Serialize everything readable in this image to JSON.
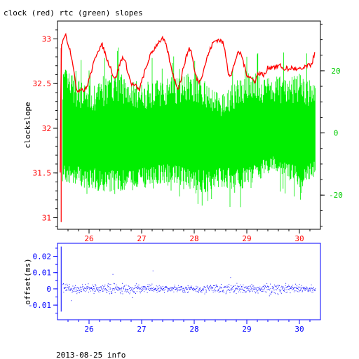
{
  "title": "clock (red) rtc (green) slopes",
  "footer": "2013-08-25 info",
  "colors": {
    "clock": "#ff0000",
    "rtc": "#00ee00",
    "offset": "#0000ff",
    "frame": "#000000",
    "rtc_axis": "#00cc00"
  },
  "chart_data": [
    {
      "type": "line",
      "title": "clock (red) rtc (green) slopes",
      "xlabel": "",
      "ylabel": "clockslope",
      "xlim": [
        25.4,
        30.4
      ],
      "ylim": [
        30.87,
        33.2
      ],
      "x_ticks": [
        26,
        27,
        28,
        29,
        30
      ],
      "x_tick_labels": [
        "26",
        "27",
        "28",
        "29",
        "30"
      ],
      "y_ticks": [
        31,
        31.5,
        32,
        32.5,
        33
      ],
      "y_tick_labels": [
        "31",
        "31.5",
        "32",
        "32.5",
        "33"
      ],
      "y2lim": [
        -31,
        36
      ],
      "y2_ticks": [
        -20,
        0,
        20
      ],
      "y2_tick_labels": [
        "-20",
        "0",
        "20"
      ],
      "grid": false,
      "series": [
        {
          "name": "clock",
          "color": "#ff0000",
          "axis": "left",
          "x": [
            25.45,
            25.47,
            25.5,
            25.55,
            25.6,
            25.65,
            25.7,
            25.75,
            25.8,
            25.85,
            25.9,
            25.95,
            26.0,
            26.05,
            26.1,
            26.15,
            26.2,
            26.25,
            26.3,
            26.35,
            26.4,
            26.45,
            26.5,
            26.55,
            26.6,
            26.65,
            26.7,
            26.75,
            26.8,
            26.85,
            26.9,
            26.95,
            27.0,
            27.05,
            27.1,
            27.15,
            27.2,
            27.25,
            27.3,
            27.35,
            27.4,
            27.45,
            27.5,
            27.55,
            27.6,
            27.65,
            27.7,
            27.75,
            27.8,
            27.85,
            27.9,
            27.95,
            28.0,
            28.05,
            28.1,
            28.15,
            28.2,
            28.25,
            28.3,
            28.35,
            28.4,
            28.45,
            28.5,
            28.55,
            28.6,
            28.65,
            28.7,
            28.75,
            28.8,
            28.85,
            28.9,
            28.95,
            29.0,
            29.05,
            29.1,
            29.15,
            29.2,
            29.25,
            29.3,
            29.35,
            29.4,
            29.45,
            29.5,
            29.55,
            29.6,
            29.65,
            29.7,
            29.75,
            29.8,
            29.85,
            29.9,
            29.95,
            30.0,
            30.05,
            30.1,
            30.15,
            30.2,
            30.25,
            30.3
          ],
          "values": [
            31.5,
            32.9,
            33.0,
            33.05,
            32.95,
            32.85,
            32.7,
            32.45,
            32.42,
            32.45,
            32.42,
            32.45,
            32.55,
            32.65,
            32.75,
            32.85,
            32.9,
            32.93,
            32.85,
            32.75,
            32.7,
            32.6,
            32.55,
            32.65,
            32.75,
            32.8,
            32.72,
            32.6,
            32.5,
            32.48,
            32.47,
            32.42,
            32.52,
            32.62,
            32.7,
            32.8,
            32.85,
            32.9,
            32.95,
            32.98,
            33.0,
            32.95,
            32.85,
            32.7,
            32.6,
            32.5,
            32.45,
            32.55,
            32.7,
            32.8,
            32.9,
            32.85,
            32.65,
            32.55,
            32.52,
            32.6,
            32.7,
            32.8,
            32.88,
            32.95,
            32.98,
            32.99,
            32.98,
            32.95,
            32.82,
            32.62,
            32.58,
            32.7,
            32.8,
            32.85,
            32.82,
            32.7,
            32.6,
            32.58,
            32.55,
            32.52,
            32.6,
            32.62,
            32.6,
            32.6,
            32.68,
            32.68,
            32.7,
            32.68,
            32.7,
            32.7,
            32.65,
            32.68,
            32.65,
            32.68,
            32.67,
            32.65,
            32.66,
            32.66,
            32.68,
            32.7,
            32.7,
            32.75,
            32.88
          ]
        },
        {
          "name": "rtc",
          "color": "#00ee00",
          "axis": "right",
          "x": [
            25.5,
            26.0,
            26.5,
            27.0,
            27.5,
            28.0,
            28.5,
            29.0,
            29.5,
            30.0,
            30.3
          ],
          "upper": [
            22,
            14,
            20,
            16,
            18,
            20,
            12,
            20,
            18,
            20,
            16
          ],
          "lower": [
            -16,
            -18,
            -20,
            -18,
            -16,
            -20,
            -18,
            -18,
            -12,
            -18,
            -14
          ],
          "center": [
            -3,
            -3,
            -2,
            -3,
            -2,
            -2,
            -3,
            -2,
            -1,
            -3,
            -2
          ]
        }
      ]
    },
    {
      "type": "scatter",
      "title": "",
      "xlabel": "",
      "ylabel": "offset(ms)",
      "xlim": [
        25.4,
        30.4
      ],
      "ylim": [
        -0.019,
        0.028
      ],
      "x_ticks": [
        26,
        27,
        28,
        29,
        30
      ],
      "x_tick_labels": [
        "26",
        "27",
        "28",
        "29",
        "30"
      ],
      "y_ticks": [
        -0.01,
        0,
        0.01,
        0.02
      ],
      "y_tick_labels": [
        "-0.01",
        "0",
        "0.01",
        "0.02"
      ],
      "grid": false,
      "series": [
        {
          "name": "offset",
          "color": "#0000ff",
          "x": [
            25.5,
            26.0,
            26.5,
            27.0,
            27.5,
            28.0,
            28.5,
            29.0,
            29.5,
            30.0,
            30.3
          ],
          "spread": [
            0.003,
            0.002,
            0.003,
            0.002,
            0.002,
            0.002,
            0.003,
            0.002,
            0.003,
            0.002,
            0.002
          ],
          "center": [
            0.0,
            0.0,
            0.0,
            0.0,
            0.0,
            0.0,
            0.0,
            0.0,
            0.0,
            0.0,
            0.0
          ]
        }
      ]
    }
  ]
}
